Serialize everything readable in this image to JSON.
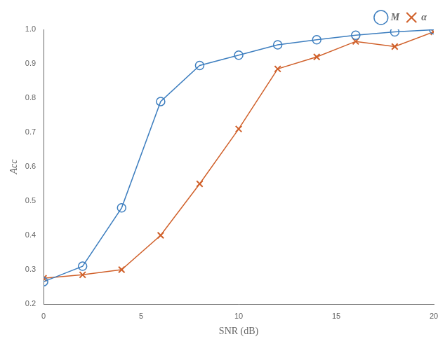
{
  "chart_data": {
    "type": "line",
    "xlabel": "SNR (dB)",
    "ylabel": "Acc",
    "series": [
      {
        "name": "M",
        "color": "#3d7ebf",
        "marker": "circle",
        "line_style": "solid",
        "x": [
          0,
          2,
          4,
          6,
          8,
          10,
          12,
          14,
          16,
          18,
          20
        ],
        "values": [
          0.265,
          0.31,
          0.48,
          0.79,
          0.895,
          0.925,
          0.955,
          0.97,
          0.983,
          0.993,
          0.999
        ]
      },
      {
        "name": "α",
        "color": "#d0602a",
        "marker": "x",
        "line_style": "solid",
        "x": [
          0,
          2,
          4,
          6,
          8,
          10,
          12,
          14,
          16,
          18,
          20
        ],
        "values": [
          0.275,
          0.285,
          0.3,
          0.4,
          0.55,
          0.71,
          0.885,
          0.92,
          0.965,
          0.95,
          0.993
        ]
      }
    ],
    "xlim": [
      0,
      20
    ],
    "ylim": [
      0.2,
      1.0
    ],
    "xticks": [
      0,
      5,
      10,
      15,
      20
    ],
    "yticks": [
      0.2,
      0.3,
      0.4,
      0.5,
      0.6,
      0.7,
      0.8,
      0.9,
      {
        "value": 1.0,
        "label": "1.0"
      }
    ],
    "grid": false,
    "legend": "upper right"
  }
}
